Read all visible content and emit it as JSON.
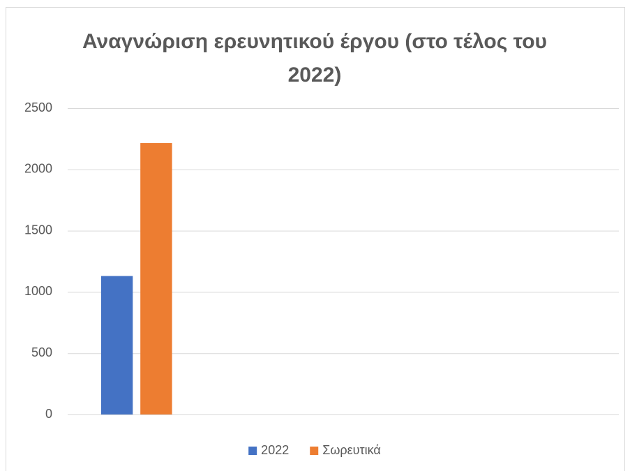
{
  "chart_data": {
    "type": "bar",
    "title": "Αναγνώριση ερευνητικού έργου (στο τέλος του 2022)",
    "categories": [
      null,
      null,
      null,
      null
    ],
    "series": [
      {
        "name": "2022",
        "color": "#4472c4",
        "values": [
          1130,
          null,
          null,
          null
        ]
      },
      {
        "name": "Σωρευτικά",
        "color": "#ed7d31",
        "values": [
          2215,
          null,
          null,
          null
        ]
      }
    ],
    "ylim": [
      0,
      2500
    ],
    "yticks": [
      0,
      500,
      1000,
      1500,
      2000,
      2500
    ],
    "grid": true,
    "legend": "bottom"
  }
}
